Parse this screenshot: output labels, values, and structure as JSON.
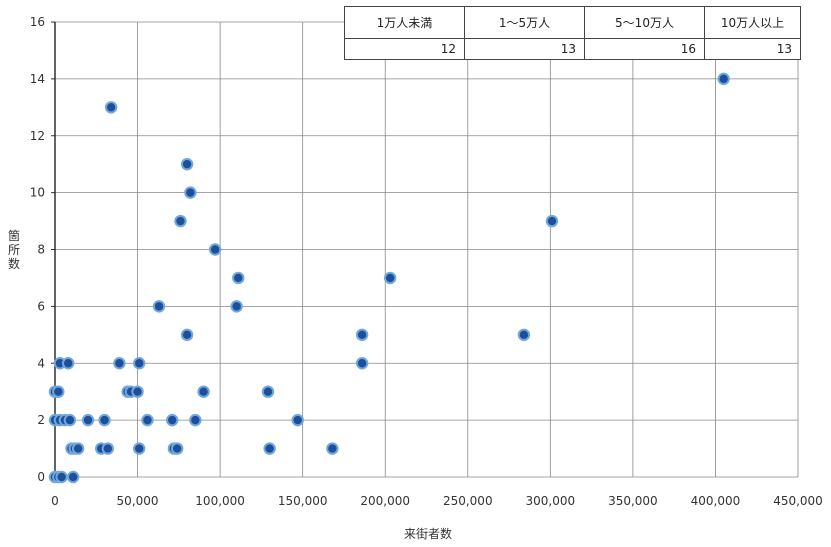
{
  "chart_data": {
    "type": "scatter",
    "title": "",
    "xlabel": "来街者数",
    "ylabel": "箇所数",
    "xlim": [
      0,
      450000
    ],
    "ylim": [
      0,
      16
    ],
    "x_ticks": [
      "0",
      "50,000",
      "100,000",
      "150,000",
      "200,000",
      "250,000",
      "300,000",
      "350,000",
      "400,000",
      "450,000"
    ],
    "y_ticks": [
      "0",
      "2",
      "4",
      "6",
      "8",
      "10",
      "12",
      "14",
      "16"
    ],
    "grid": true,
    "colors": {
      "marker_fill": "#1f4e9a",
      "marker_edge": "#6fa8dc",
      "grid": "#888888"
    },
    "summary_table": {
      "headers": [
        "1万人未満",
        "1～5万人",
        "5～10万人",
        "10万人以上"
      ],
      "values": [
        "12",
        "13",
        "16",
        "13"
      ]
    },
    "series": [
      {
        "points": [
          [
            0,
            0
          ],
          [
            2000,
            0
          ],
          [
            4000,
            0
          ],
          [
            11000,
            0
          ],
          [
            10000,
            1
          ],
          [
            12000,
            1
          ],
          [
            14000,
            1
          ],
          [
            28000,
            1
          ],
          [
            32000,
            1
          ],
          [
            51000,
            1
          ],
          [
            72000,
            1
          ],
          [
            74000,
            1
          ],
          [
            130000,
            1
          ],
          [
            168000,
            1
          ],
          [
            0,
            2
          ],
          [
            3000,
            2
          ],
          [
            6000,
            2
          ],
          [
            9000,
            2
          ],
          [
            20000,
            2
          ],
          [
            30000,
            2
          ],
          [
            56000,
            2
          ],
          [
            71000,
            2
          ],
          [
            85000,
            2
          ],
          [
            147000,
            2
          ],
          [
            0,
            3
          ],
          [
            2000,
            3
          ],
          [
            44000,
            3
          ],
          [
            46000,
            3
          ],
          [
            50000,
            3
          ],
          [
            90000,
            3
          ],
          [
            129000,
            3
          ],
          [
            3000,
            4
          ],
          [
            8000,
            4
          ],
          [
            39000,
            4
          ],
          [
            51000,
            4
          ],
          [
            186000,
            4
          ],
          [
            80000,
            5
          ],
          [
            186000,
            5
          ],
          [
            284000,
            5
          ],
          [
            63000,
            6
          ],
          [
            110000,
            6
          ],
          [
            111000,
            7
          ],
          [
            203000,
            7
          ],
          [
            97000,
            8
          ],
          [
            76000,
            9
          ],
          [
            301000,
            9
          ],
          [
            82000,
            10
          ],
          [
            80000,
            11
          ],
          [
            34000,
            13
          ],
          [
            405000,
            14
          ]
        ]
      }
    ]
  }
}
